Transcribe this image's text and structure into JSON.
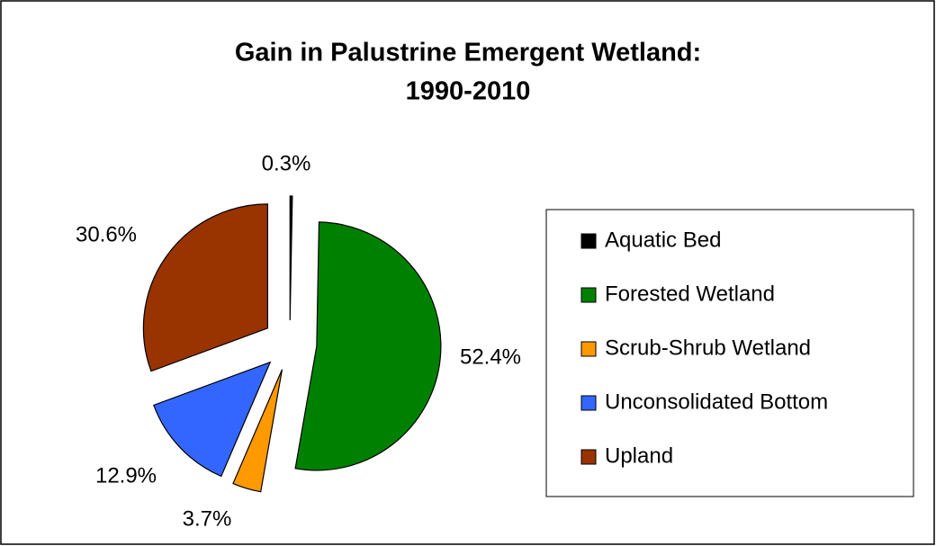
{
  "chart_data": {
    "type": "pie",
    "title": [
      "Gain in Palustrine Emergent Wetland:",
      "1990-2010"
    ],
    "categories": [
      "Aquatic Bed",
      "Forested Wetland",
      "Scrub-Shrub Wetland",
      "Unconsolidated Bottom",
      "Upland"
    ],
    "values": [
      0.3,
      52.4,
      3.7,
      12.9,
      30.6
    ],
    "value_labels": [
      "0.3%",
      "52.4%",
      "3.7%",
      "12.9%",
      "30.6%"
    ],
    "colors": [
      "#000000",
      "#008000",
      "#FF9900",
      "#3366FF",
      "#993300"
    ],
    "legend": "right"
  }
}
